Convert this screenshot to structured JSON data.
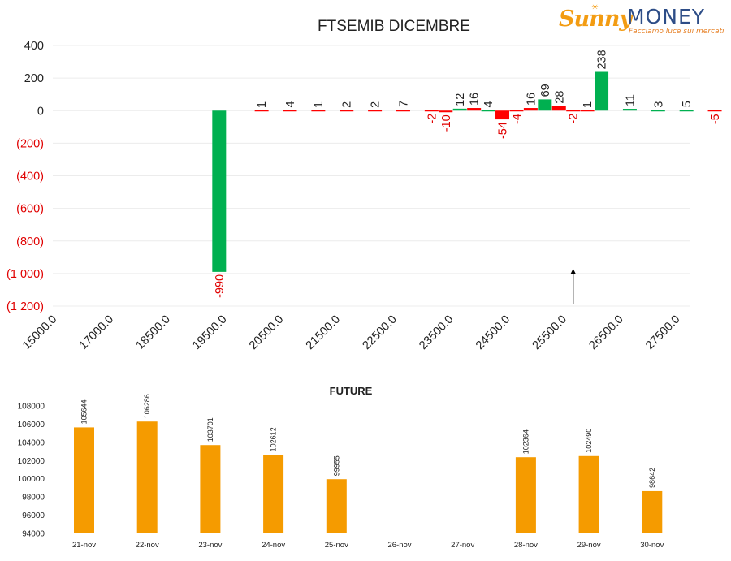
{
  "logo": {
    "brand_part1": "Sunny",
    "brand_part2": "MONEY",
    "tagline": "Facciamo luce sui mercati"
  },
  "colors": {
    "positive": "#00b050",
    "negative": "#ff0000",
    "future_bar": "#f59b00",
    "negative_text": "#e00000",
    "text": "#222222",
    "grid": "#ececec"
  },
  "chart_data": [
    {
      "type": "bar",
      "title": "FTSEMIB DICEMBRE",
      "xlabel": "",
      "ylabel": "",
      "ylim": [
        -1200,
        400
      ],
      "y_ticks": [
        400,
        200,
        0,
        -200,
        -400,
        -600,
        -800,
        -1000,
        -1200
      ],
      "y_tick_labels": [
        "400",
        "200",
        "0",
        "(200)",
        "(400)",
        "(600)",
        "(800)",
        "(1 000)",
        "(1 200)"
      ],
      "x_tick_labels": [
        "15000.0",
        "17000.0",
        "18500.0",
        "19500.0",
        "20500.0",
        "21500.0",
        "22500.0",
        "23500.0",
        "24500.0",
        "25500.0",
        "26500.0",
        "27500.0"
      ],
      "grid": true,
      "legend": "none",
      "bars": [
        {
          "slot": 6,
          "value": -990,
          "label": "-990",
          "color": "positive"
        },
        {
          "slot": 7.5,
          "value": 1,
          "label": "1",
          "color": "negative"
        },
        {
          "slot": 8.5,
          "value": 4,
          "label": "4",
          "color": "negative"
        },
        {
          "slot": 9.5,
          "value": 1,
          "label": "1",
          "color": "negative"
        },
        {
          "slot": 10.5,
          "value": 2,
          "label": "2",
          "color": "negative"
        },
        {
          "slot": 11.5,
          "value": 2,
          "label": "2",
          "color": "negative"
        },
        {
          "slot": 12.5,
          "value": 7,
          "label": "7",
          "color": "negative"
        },
        {
          "slot": 13.5,
          "value": -2,
          "label": "-2",
          "color": "negative"
        },
        {
          "slot": 14,
          "value": -10,
          "label": "-10",
          "color": "negative"
        },
        {
          "slot": 14.5,
          "value": 12,
          "label": "12",
          "color": "positive"
        },
        {
          "slot": 15,
          "value": 16,
          "label": "16",
          "color": "negative"
        },
        {
          "slot": 15.5,
          "value": 4,
          "label": "4",
          "color": "positive"
        },
        {
          "slot": 16,
          "value": -54,
          "label": "-54",
          "color": "negative"
        },
        {
          "slot": 16.5,
          "value": -4,
          "label": "-4",
          "color": "negative"
        },
        {
          "slot": 17,
          "value": 16,
          "label": "16",
          "color": "negative"
        },
        {
          "slot": 17.5,
          "value": 69,
          "label": "69",
          "color": "positive"
        },
        {
          "slot": 18,
          "value": 28,
          "label": "28",
          "color": "negative"
        },
        {
          "slot": 18.5,
          "value": -2,
          "label": "-2",
          "color": "negative"
        },
        {
          "slot": 19,
          "value": 1,
          "label": "1",
          "color": "negative"
        },
        {
          "slot": 19.5,
          "value": 238,
          "label": "238",
          "color": "positive"
        },
        {
          "slot": 20.5,
          "value": 11,
          "label": "11",
          "color": "positive"
        },
        {
          "slot": 21.5,
          "value": 3,
          "label": "3",
          "color": "positive"
        },
        {
          "slot": 22.5,
          "value": 5,
          "label": "5",
          "color": "positive"
        },
        {
          "slot": 23.5,
          "value": -5,
          "label": "-5",
          "color": "negative"
        }
      ],
      "annotations": [
        {
          "type": "arrow",
          "direction": "up",
          "slot": 18.5
        }
      ]
    },
    {
      "type": "bar",
      "title": "FUTURE",
      "xlabel": "",
      "ylabel": "",
      "ylim": [
        94000,
        108000
      ],
      "y_ticks": [
        94000,
        96000,
        98000,
        100000,
        102000,
        104000,
        106000,
        108000
      ],
      "y_tick_labels": [
        "94000",
        "96000",
        "98000",
        "100000",
        "102000",
        "104000",
        "106000",
        "108000"
      ],
      "categories": [
        "21-nov",
        "22-nov",
        "23-nov",
        "24-nov",
        "25-nov",
        "26-nov",
        "27-nov",
        "28-nov",
        "29-nov",
        "30-nov"
      ],
      "values": [
        105644,
        106286,
        103701,
        102612,
        99955,
        null,
        null,
        102364,
        102490,
        98642
      ],
      "data_labels": [
        "105644",
        "106286",
        "103701",
        "102612",
        "99955",
        "",
        "",
        "102364",
        "102490",
        "98642"
      ],
      "grid": false,
      "legend": "none"
    }
  ]
}
